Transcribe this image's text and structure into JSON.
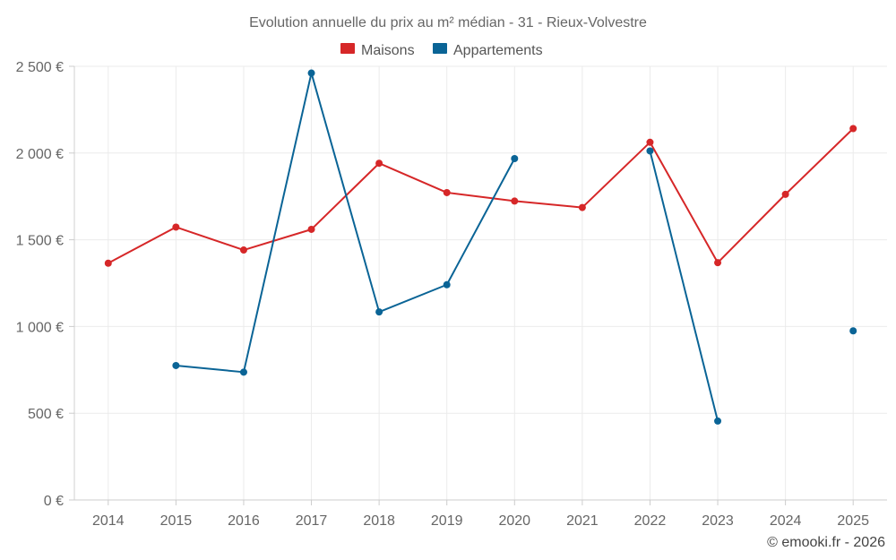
{
  "chart_data": {
    "type": "line",
    "title": "Evolution annuelle du prix au m² médian - 31 - Rieux-Volvestre",
    "categories": [
      "2014",
      "2015",
      "2016",
      "2017",
      "2018",
      "2019",
      "2020",
      "2021",
      "2022",
      "2023",
      "2024",
      "2025"
    ],
    "series": [
      {
        "name": "Maisons",
        "color": "#d62728",
        "values": [
          1365,
          1573,
          1441,
          1560,
          1941,
          1772,
          1723,
          1686,
          2062,
          1368,
          1762,
          2141
        ]
      },
      {
        "name": "Appartements",
        "color": "#0a6496",
        "values": [
          null,
          775,
          737,
          2461,
          1084,
          1241,
          1968,
          null,
          2012,
          455,
          null,
          975
        ]
      }
    ],
    "ylim": [
      0,
      2500
    ],
    "yticks": [
      0,
      500,
      1000,
      1500,
      2000,
      2500
    ],
    "ytick_labels": [
      "0 €",
      "500 €",
      "1 000 €",
      "1 500 €",
      "2 000 €",
      "2 500 €"
    ],
    "xlabel": "",
    "ylabel": "",
    "grid": true,
    "legend_position": "top-center"
  },
  "credit": "© emooki.fr - 2026"
}
